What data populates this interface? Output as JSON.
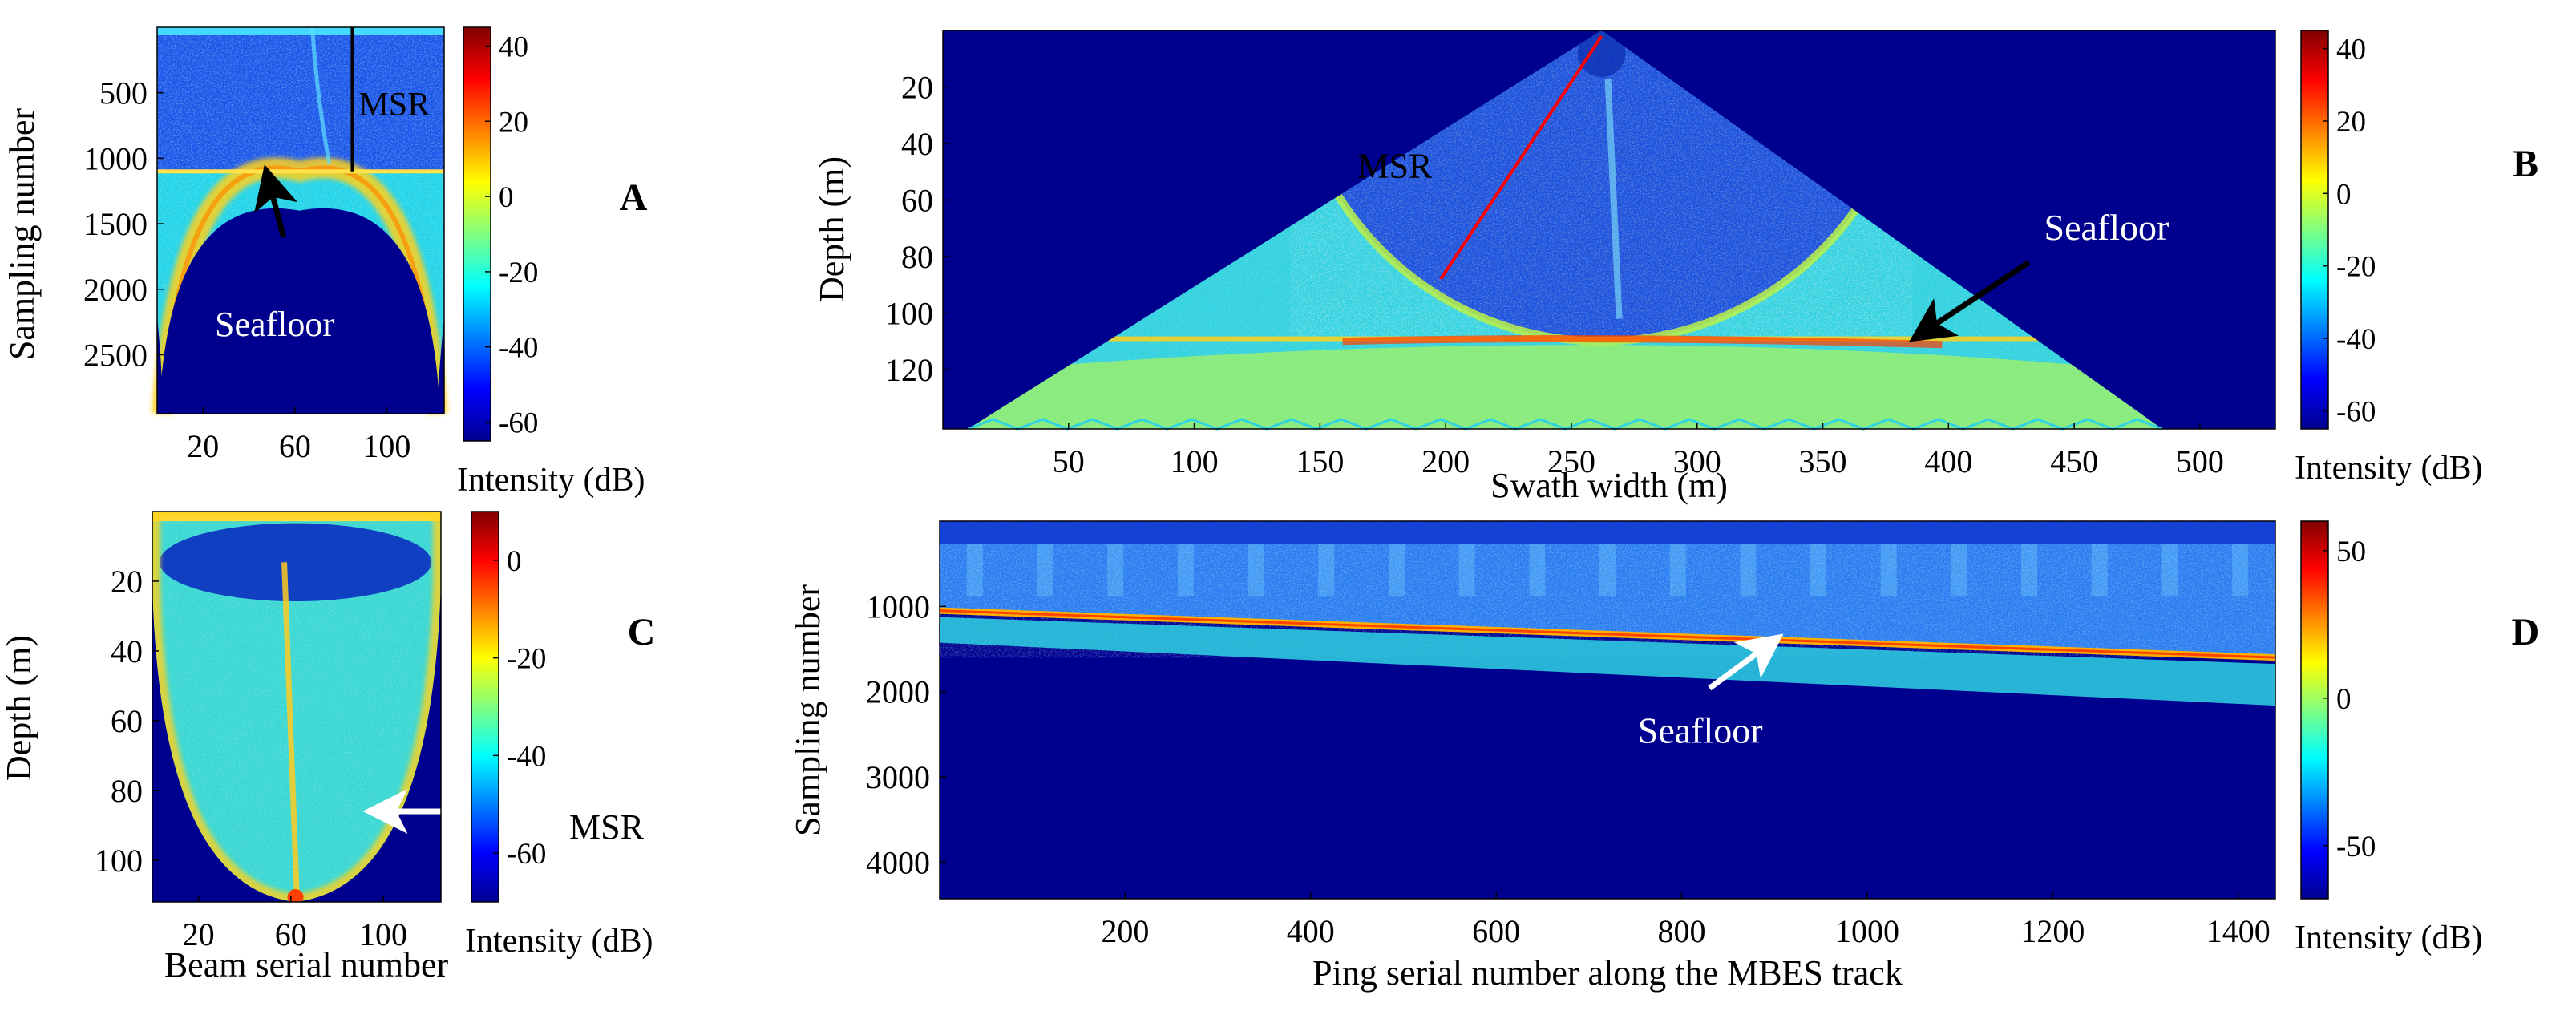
{
  "figure": {
    "background": "#ffffff",
    "plot_background": "#00008f",
    "colormap": [
      "#00008f",
      "#0000ff",
      "#0080ff",
      "#00ffff",
      "#80ff80",
      "#ffff00",
      "#ff8000",
      "#ff0000",
      "#800000"
    ]
  },
  "chart_data": [
    {
      "panel_letter": "A",
      "type": "heatmap",
      "xlabel": "",
      "ylabel": "Sampling number",
      "xticks": [
        "20",
        "60",
        "100"
      ],
      "yticks": [
        "500",
        "1000",
        "1500",
        "2000",
        "2500"
      ],
      "xlim": [
        0,
        125
      ],
      "ylim": [
        0,
        2950
      ],
      "y_reversed": true,
      "colorbar": {
        "label": "Intensity (dB)",
        "ticks": [
          "40",
          "20",
          "0",
          "-20",
          "-40",
          "-60"
        ],
        "range": [
          -65,
          45
        ]
      },
      "annotations": [
        {
          "text": "MSR",
          "color": "#000000"
        },
        {
          "text": "Seafloor",
          "color": "#ffffff"
        }
      ],
      "msr_line": {
        "x": 85,
        "y_from": 0,
        "y_to": 1100
      },
      "seafloor_level": 1100,
      "arc": {
        "center_x": 62,
        "apex_y": 1100,
        "foot_y": 2950,
        "half_width": 60
      },
      "blind_zone_apex": 1400,
      "arrow": {
        "from": [
          55,
          1600
        ],
        "to": [
          48,
          1130
        ],
        "color": "#000000"
      }
    },
    {
      "panel_letter": "B",
      "type": "heatmap",
      "xlabel": "Swath width (m)",
      "ylabel": "Depth (m)",
      "xticks": [
        "50",
        "100",
        "150",
        "200",
        "250",
        "300",
        "350",
        "400",
        "450",
        "500"
      ],
      "yticks": [
        "20",
        "40",
        "60",
        "80",
        "100",
        "120"
      ],
      "xlim": [
        0,
        530
      ],
      "ylim": [
        0,
        141
      ],
      "y_reversed": true,
      "colorbar": {
        "label": "Intensity (dB)",
        "ticks": [
          "40",
          "20",
          "0",
          "-20",
          "-40",
          "-60"
        ],
        "range": [
          -65,
          45
        ]
      },
      "annotations": [
        {
          "text": "MSR",
          "color": "#000000"
        },
        {
          "text": "Seafloor",
          "color": "#ffffff"
        }
      ],
      "fan_apex": [
        262,
        0
      ],
      "fan_base": {
        "left": 10,
        "right": 485,
        "depth": 141
      },
      "msr_circle": {
        "center_x": 262,
        "radius_depth": 110
      },
      "seafloor": {
        "depth_center": 110,
        "depth_edge": 104
      },
      "msr_line": {
        "from": [
          262,
          2
        ],
        "to": [
          198,
          88
        ],
        "color": "#ff0000"
      },
      "arrow": {
        "from": [
          432,
          82
        ],
        "to": [
          388,
          108
        ],
        "color": "#000000"
      }
    },
    {
      "panel_letter": "C",
      "type": "heatmap",
      "xlabel": "Beam serial number",
      "ylabel": "Depth (m)",
      "xticks": [
        "20",
        "60",
        "100"
      ],
      "yticks": [
        "20",
        "40",
        "60",
        "80",
        "100"
      ],
      "xlim": [
        0,
        125
      ],
      "ylim": [
        0,
        112
      ],
      "y_reversed": true,
      "colorbar": {
        "label": "Intensity (dB)",
        "ticks": [
          "0",
          "-20",
          "-40",
          "-60"
        ],
        "range": [
          -70,
          10
        ]
      },
      "annotations": [
        {
          "text": "MSR",
          "color": "#000000"
        }
      ],
      "bowl": {
        "center_x": 62,
        "depth": 112,
        "half_width": 62
      },
      "arrow": {
        "from": [
          125,
          86
        ],
        "to": [
          96,
          86
        ],
        "color": "#ffffff"
      }
    },
    {
      "panel_letter": "D",
      "type": "heatmap",
      "xlabel": "Ping serial number along the MBES track",
      "ylabel": "Sampling number",
      "xticks": [
        "200",
        "400",
        "600",
        "800",
        "1000",
        "1200",
        "1400"
      ],
      "yticks": [
        "1000",
        "2000",
        "3000",
        "4000"
      ],
      "xlim": [
        0,
        1440
      ],
      "ylim": [
        0,
        4430
      ],
      "y_reversed": true,
      "colorbar": {
        "label": "Intensity (dB)",
        "ticks": [
          "50",
          "0",
          "-50"
        ],
        "range": [
          -68,
          60
        ]
      },
      "annotations": [
        {
          "text": "Seafloor",
          "color": "#ffffff"
        }
      ],
      "seafloor_line": {
        "x": [
          0,
          1440
        ],
        "y": [
          1050,
          1600
        ]
      },
      "arrow": {
        "from": [
          830,
          1960
        ],
        "to": [
          900,
          1400
        ],
        "color": "#ffffff"
      }
    }
  ]
}
